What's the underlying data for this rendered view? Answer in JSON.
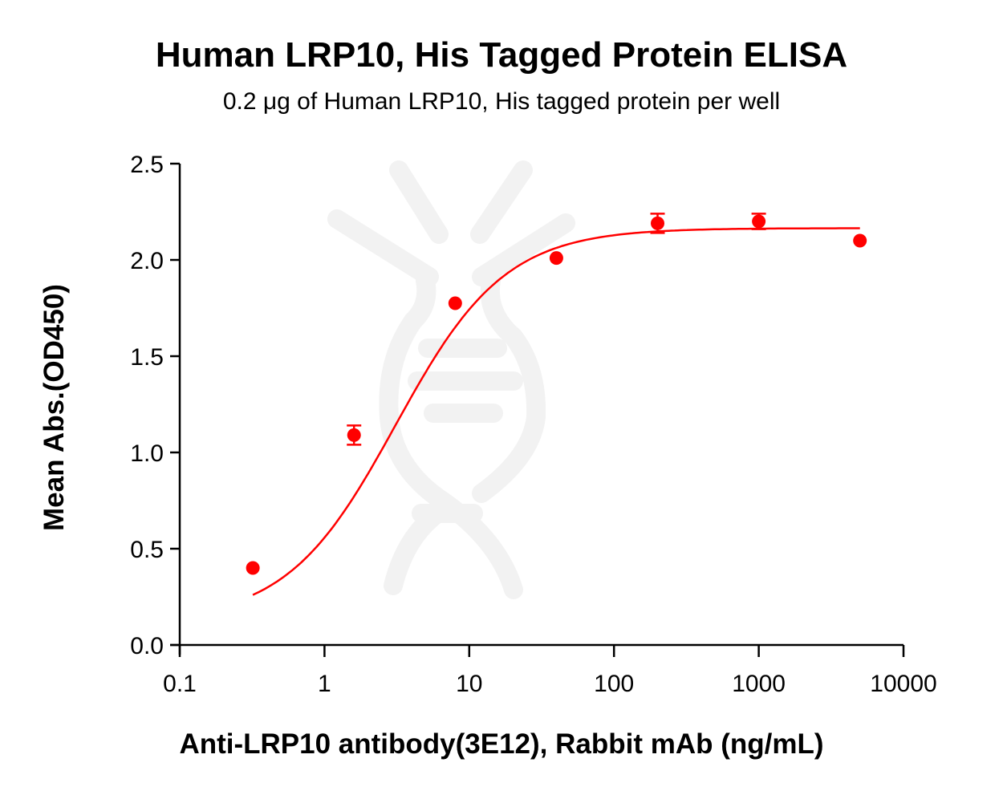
{
  "chart_data": {
    "type": "scatter",
    "title": "Human LRP10, His Tagged Protein ELISA",
    "subtitle": "0.2 μg of Human LRP10, His tagged protein per well",
    "xlabel": "Anti-LRP10 antibody(3E12), Rabbit mAb (ng/mL)",
    "ylabel": "Mean Abs.(OD450)",
    "xscale": "log",
    "xlim": [
      0.1,
      10000
    ],
    "ylim": [
      0,
      2.5
    ],
    "xticks": [
      "0.1",
      "1",
      "10",
      "100",
      "1000",
      "10000"
    ],
    "yticks": [
      "0.0",
      "0.5",
      "1.0",
      "1.5",
      "2.0",
      "2.5"
    ],
    "grid": false,
    "legend": null,
    "series": [
      {
        "name": "Human LRP10, His Tagged Protein",
        "color": "#ff0000",
        "x": [
          0.32,
          1.6,
          8,
          40,
          200,
          1000,
          5000
        ],
        "y": [
          0.4,
          1.09,
          1.775,
          2.01,
          2.19,
          2.2,
          2.1
        ],
        "error": [
          0.01,
          0.05,
          0.01,
          0.01,
          0.05,
          0.04,
          0.01
        ],
        "fit": "4PL sigmoidal curve"
      }
    ],
    "fit_params": {
      "bottom": 0.12,
      "top": 2.165,
      "ec50": 3.1,
      "hill": 1.15
    }
  },
  "colors": {
    "series": "#ff0000",
    "axis": "#000000",
    "watermark": "#f3f3f3"
  }
}
